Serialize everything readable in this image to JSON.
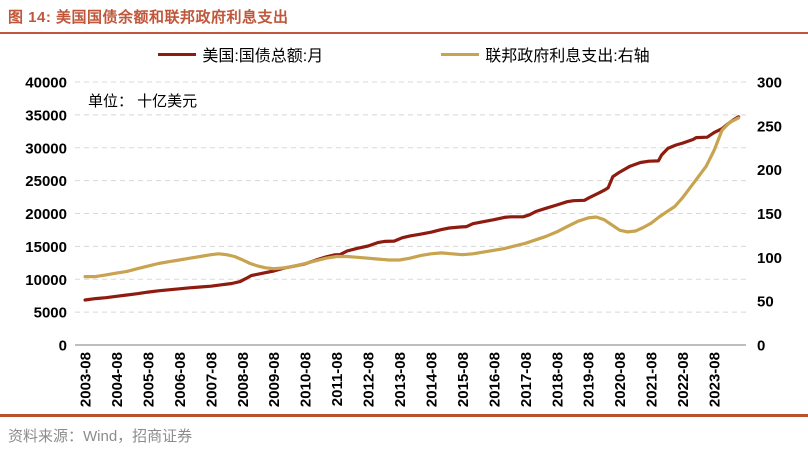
{
  "header": {
    "title": "图 14: 美国国债余额和联邦政府利息支出"
  },
  "unit_label": "单位： 十亿美元",
  "source": "资料来源：Wind，招商证券",
  "colors": {
    "title_accent": "#C0573B",
    "bottom_rule": "#B5532F",
    "grid": "#D8D8D8",
    "axis_line": "#A8A8A8",
    "debt_line": "#8E1B10",
    "interest_line": "#C8A350"
  },
  "chart_data": {
    "type": "line",
    "title": "美国国债余额和联邦政府利息支出",
    "grid": "dashed-horizontal",
    "legend_position": "top-center",
    "x_axis": {
      "tick_labels": [
        "2003-08",
        "2004-08",
        "2005-08",
        "2006-08",
        "2007-08",
        "2008-08",
        "2009-08",
        "2010-08",
        "2011-08",
        "2012-08",
        "2013-08",
        "2014-08",
        "2015-08",
        "2016-08",
        "2017-08",
        "2018-08",
        "2019-08",
        "2020-08",
        "2021-08",
        "2022-08",
        "2023-08"
      ],
      "tick_years": [
        2003.667,
        2004.667,
        2005.667,
        2006.667,
        2007.667,
        2008.667,
        2009.667,
        2010.667,
        2011.667,
        2012.667,
        2013.667,
        2014.667,
        2015.667,
        2016.667,
        2017.667,
        2018.667,
        2019.667,
        2020.667,
        2021.667,
        2022.667,
        2023.667
      ],
      "data_end_year": 2024.5
    },
    "y_left": {
      "min": 0,
      "max": 40000,
      "step": 5000,
      "ticks": [
        "0",
        "5000",
        "10000",
        "15000",
        "20000",
        "25000",
        "30000",
        "35000",
        "40000"
      ]
    },
    "y_right": {
      "min": 0,
      "max": 300,
      "step": 50,
      "ticks": [
        "0",
        "50",
        "100",
        "150",
        "200",
        "250",
        "300"
      ]
    },
    "series": [
      {
        "name": "美国:国债总额:月",
        "axis": "left",
        "color": "#8E1B10",
        "x": [
          2003.67,
          2004.0,
          2004.33,
          2004.67,
          2005.0,
          2005.33,
          2005.67,
          2006.0,
          2006.33,
          2006.67,
          2007.0,
          2007.33,
          2007.67,
          2008.0,
          2008.33,
          2008.6,
          2008.78,
          2008.95,
          2009.15,
          2009.4,
          2009.67,
          2010.0,
          2010.33,
          2010.67,
          2011.0,
          2011.33,
          2011.6,
          2011.78,
          2012.0,
          2012.33,
          2012.67,
          2013.0,
          2013.2,
          2013.5,
          2013.75,
          2014.0,
          2014.33,
          2014.67,
          2015.0,
          2015.25,
          2015.6,
          2015.8,
          2016.0,
          2016.33,
          2016.67,
          2017.0,
          2017.2,
          2017.6,
          2017.8,
          2018.0,
          2018.33,
          2018.67,
          2019.0,
          2019.2,
          2019.55,
          2019.7,
          2020.0,
          2020.2,
          2020.3,
          2020.45,
          2020.67,
          2021.0,
          2021.33,
          2021.6,
          2021.9,
          2022.0,
          2022.2,
          2022.45,
          2022.67,
          2023.0,
          2023.1,
          2023.45,
          2023.67,
          2023.92,
          2024.1,
          2024.3,
          2024.45
        ],
        "values": [
          6850,
          7050,
          7200,
          7400,
          7600,
          7800,
          8050,
          8250,
          8400,
          8550,
          8700,
          8820,
          8950,
          9150,
          9350,
          9650,
          10100,
          10550,
          10750,
          11000,
          11250,
          11700,
          12000,
          12350,
          12900,
          13400,
          13700,
          13750,
          14300,
          14700,
          15050,
          15600,
          15750,
          15800,
          16300,
          16600,
          16850,
          17150,
          17550,
          17800,
          17950,
          18000,
          18450,
          18750,
          19050,
          19400,
          19500,
          19500,
          19800,
          20300,
          20800,
          21300,
          21800,
          21950,
          22000,
          22400,
          23100,
          23600,
          23900,
          25600,
          26300,
          27200,
          27750,
          27950,
          28000,
          28900,
          29900,
          30400,
          30700,
          31250,
          31550,
          31600,
          32300,
          32900,
          33600,
          34300,
          34700
        ]
      },
      {
        "name": "联邦政府利息支出:右轴",
        "axis": "right",
        "color": "#C8A350",
        "x": [
          2003.67,
          2004.0,
          2004.33,
          2004.67,
          2005.0,
          2005.33,
          2005.67,
          2006.0,
          2006.33,
          2006.67,
          2007.0,
          2007.33,
          2007.67,
          2007.92,
          2008.17,
          2008.42,
          2008.62,
          2008.92,
          2009.17,
          2009.42,
          2009.67,
          2010.0,
          2010.33,
          2010.67,
          2011.0,
          2011.33,
          2011.67,
          2012.0,
          2012.33,
          2012.67,
          2013.0,
          2013.33,
          2013.67,
          2014.0,
          2014.33,
          2014.67,
          2015.0,
          2015.33,
          2015.67,
          2016.0,
          2016.33,
          2016.67,
          2017.0,
          2017.33,
          2017.67,
          2018.0,
          2018.33,
          2018.67,
          2019.0,
          2019.33,
          2019.67,
          2019.92,
          2020.17,
          2020.42,
          2020.67,
          2020.92,
          2021.17,
          2021.42,
          2021.67,
          2021.92,
          2022.17,
          2022.42,
          2022.67,
          2022.92,
          2023.17,
          2023.42,
          2023.67,
          2023.92,
          2024.17,
          2024.45
        ],
        "values": [
          78,
          78,
          80,
          82,
          84,
          87,
          90,
          93,
          95,
          97,
          99,
          101,
          103,
          104,
          103,
          101,
          98,
          93,
          90,
          88,
          87,
          88,
          90,
          93,
          96,
          99,
          101,
          101,
          100,
          99,
          98,
          97,
          97,
          99,
          102,
          104,
          105,
          104,
          103,
          104,
          106,
          108,
          110,
          113,
          116,
          120,
          124,
          129,
          135,
          141,
          145,
          146,
          143,
          137,
          131,
          129,
          130,
          134,
          139,
          146,
          152,
          158,
          168,
          180,
          192,
          204,
          222,
          245,
          254,
          259
        ]
      }
    ]
  }
}
